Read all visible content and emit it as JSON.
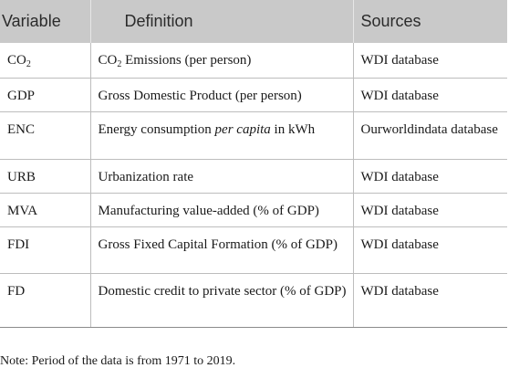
{
  "table": {
    "headers": [
      "Variable",
      "Definition",
      "Sources"
    ],
    "rows": [
      {
        "variable": "CO",
        "variable_sub": "2",
        "def_pre": "CO",
        "def_sub": "2",
        "def_post": " Emissions (per person)",
        "source": "WDI database"
      },
      {
        "variable": "GDP",
        "def_pre": "Gross Domestic Product (per person)",
        "source": "WDI database"
      },
      {
        "variable": "ENC",
        "def_pre": "Energy consumption ",
        "def_italic": "per capita",
        "def_post": " in kWh",
        "source": "Ourworldindata database"
      },
      {
        "variable": "URB",
        "def_pre": "Urbanization rate",
        "source": "WDI database"
      },
      {
        "variable": "MVA",
        "def_pre": "Manufacturing value-added (% of GDP)",
        "source": "WDI database"
      },
      {
        "variable": "FDI",
        "def_pre": "Gross Fixed Capital Formation (% of GDP)",
        "source": "WDI database"
      },
      {
        "variable": "FD",
        "def_pre": "Domestic credit to private sector (% of GDP)",
        "source": "WDI database"
      }
    ]
  },
  "note": "Note: Period of the data is from 1971 to 2019."
}
